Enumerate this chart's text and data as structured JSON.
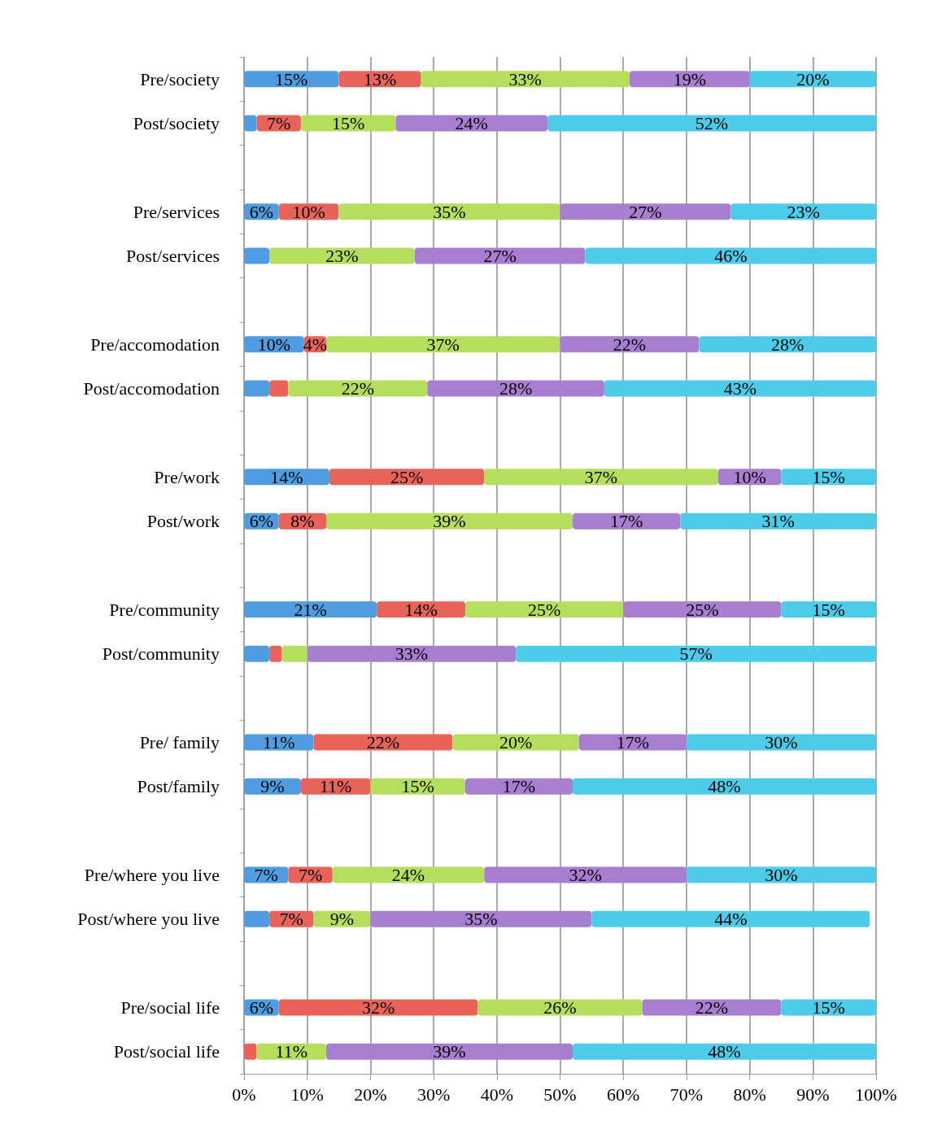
{
  "chart_data": {
    "type": "bar",
    "orientation": "horizontal",
    "stacked": true,
    "grid": "x",
    "categories": [
      "Pre/society",
      "Post/society",
      null,
      "Pre/services",
      "Post/services",
      null,
      "Pre/accomodation",
      "Post/accomodation",
      null,
      "Pre/work",
      "Post/work",
      null,
      "Pre/community",
      "Post/community",
      null,
      "Pre/ family",
      "Post/family",
      null,
      "Pre/where you live",
      "Post/where you live",
      null,
      "Pre/social life",
      "Post/social life"
    ],
    "xlim": [
      0,
      100
    ],
    "xticks": [
      {
        "value": 0,
        "label": "0%"
      },
      {
        "value": 10,
        "label": "10%"
      },
      {
        "value": 20,
        "label": "20%"
      },
      {
        "value": 30,
        "label": "30%"
      },
      {
        "value": 40,
        "label": "40%"
      },
      {
        "value": 50,
        "label": "50%"
      },
      {
        "value": 60,
        "label": "60%"
      },
      {
        "value": 70,
        "label": "70%"
      },
      {
        "value": 80,
        "label": "80%"
      },
      {
        "value": 90,
        "label": "90%"
      },
      {
        "value": 100,
        "label": "100%"
      }
    ],
    "series": [
      {
        "color": "#4f9de0",
        "values": [
          15,
          2,
          null,
          5.5,
          4,
          null,
          9.5,
          4,
          null,
          13.5,
          5.5,
          null,
          21,
          4,
          null,
          11,
          9,
          null,
          7,
          4,
          null,
          5.5,
          0
        ],
        "value_labels": [
          "15%",
          null,
          null,
          "6%",
          null,
          null,
          "10%",
          null,
          null,
          "14%",
          "6%",
          null,
          "21%",
          null,
          null,
          "11%",
          "9%",
          null,
          "7%",
          null,
          null,
          "6%",
          null
        ]
      },
      {
        "color": "#e8645a",
        "values": [
          13,
          7,
          null,
          9.5,
          0,
          null,
          3.5,
          3,
          null,
          24.5,
          7.5,
          null,
          14,
          2,
          null,
          22,
          11,
          null,
          7,
          7,
          null,
          31.5,
          2
        ],
        "value_labels": [
          "13%",
          "7%",
          null,
          "10%",
          null,
          null,
          "4%",
          null,
          null,
          "25%",
          "8%",
          null,
          "14%",
          null,
          null,
          "22%",
          "11%",
          null,
          "7%",
          "7%",
          null,
          "32%",
          null
        ]
      },
      {
        "color": "#b5dd5e",
        "values": [
          33,
          15,
          null,
          35,
          23,
          null,
          37,
          22,
          null,
          37,
          39,
          null,
          25,
          4,
          null,
          20,
          15,
          null,
          24,
          9,
          null,
          26,
          11
        ],
        "value_labels": [
          "33%",
          "15%",
          null,
          "35%",
          "23%",
          null,
          "37%",
          "22%",
          null,
          "37%",
          "39%",
          null,
          "25%",
          null,
          null,
          "20%",
          "15%",
          null,
          "24%",
          "9%",
          null,
          "26%",
          "11%"
        ]
      },
      {
        "color": "#a87fd0",
        "values": [
          19,
          24,
          null,
          27,
          27,
          null,
          22,
          28,
          null,
          10,
          17,
          null,
          25,
          33,
          null,
          17,
          17,
          null,
          32,
          35,
          null,
          22,
          39
        ],
        "value_labels": [
          "19%",
          "24%",
          null,
          "27%",
          "27%",
          null,
          "22%",
          "28%",
          null,
          "10%",
          "17%",
          null,
          "25%",
          "33%",
          null,
          "17%",
          "17%",
          null,
          "32%",
          "35%",
          null,
          "22%",
          "39%"
        ]
      },
      {
        "color": "#4dcbe8",
        "values": [
          20,
          52,
          null,
          23,
          46,
          null,
          28,
          43,
          null,
          15,
          31,
          null,
          15,
          57,
          null,
          30,
          48,
          null,
          30,
          44,
          null,
          15,
          48
        ],
        "value_labels": [
          "20%",
          "52%",
          null,
          "23%",
          "46%",
          null,
          "28%",
          "43%",
          null,
          "15%",
          "31%",
          null,
          "15%",
          "57%",
          null,
          "30%",
          "48%",
          null,
          "30%",
          "44%",
          null,
          "15%",
          "48%"
        ]
      }
    ]
  }
}
